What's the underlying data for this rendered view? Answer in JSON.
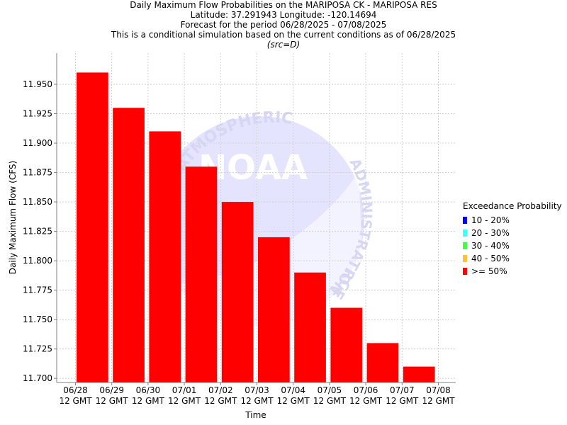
{
  "titles": {
    "line1": "Daily Maximum Flow Probabilities on the MARIPOSA CK - MARIPOSA RES",
    "line2": "Latitude: 37.291943 Longitude: -120.14694",
    "line3": "Forecast for the period 06/28/2025 - 07/08/2025",
    "line4": "This is a conditional simulation based on the current conditions as of 06/28/2025",
    "line5": "(src=D)"
  },
  "watermark": {
    "top_arc": "IC AND ATMOSPHERIC",
    "right_arc": "ADMINISTRATION",
    "bottom_arc": "RCE",
    "logo": "NOAA"
  },
  "legend": {
    "title": "Exceedance Probability",
    "items": [
      {
        "label": "10 - 20%",
        "color": "#0000ff"
      },
      {
        "label": "20 - 30%",
        "color": "#40ffff"
      },
      {
        "label": "30 - 40%",
        "color": "#40ff40"
      },
      {
        "label": "40 - 50%",
        "color": "#ffc040"
      },
      {
        "label": ">= 50%",
        "color": "#ff0000"
      }
    ]
  },
  "chart_data": {
    "type": "bar",
    "xlabel": "Time",
    "ylabel": "Daily Maximum Flow (CFS)",
    "ylim": [
      11.6965,
      11.9765
    ],
    "yticks": [
      11.7,
      11.725,
      11.75,
      11.775,
      11.8,
      11.825,
      11.85,
      11.875,
      11.9,
      11.925,
      11.95
    ],
    "ytick_labels": [
      "11.700",
      "11.725",
      "11.750",
      "11.775",
      "11.800",
      "11.825",
      "11.850",
      "11.875",
      "11.900",
      "11.925",
      "11.950"
    ],
    "x_tick_labels": [
      [
        "06/28",
        "12 GMT"
      ],
      [
        "06/29",
        "12 GMT"
      ],
      [
        "06/30",
        "12 GMT"
      ],
      [
        "07/01",
        "12 GMT"
      ],
      [
        "07/02",
        "12 GMT"
      ],
      [
        "07/03",
        "12 GMT"
      ],
      [
        "07/04",
        "12 GMT"
      ],
      [
        "07/05",
        "12 GMT"
      ],
      [
        "07/06",
        "12 GMT"
      ],
      [
        "07/07",
        "12 GMT"
      ],
      [
        "07/08",
        "12 GMT"
      ]
    ],
    "series": [
      {
        "values": [
          11.96,
          11.93,
          11.91,
          11.88,
          11.85,
          11.82,
          11.79,
          11.76,
          11.73,
          11.71
        ],
        "color": "#ff0000"
      }
    ],
    "grid": true
  }
}
